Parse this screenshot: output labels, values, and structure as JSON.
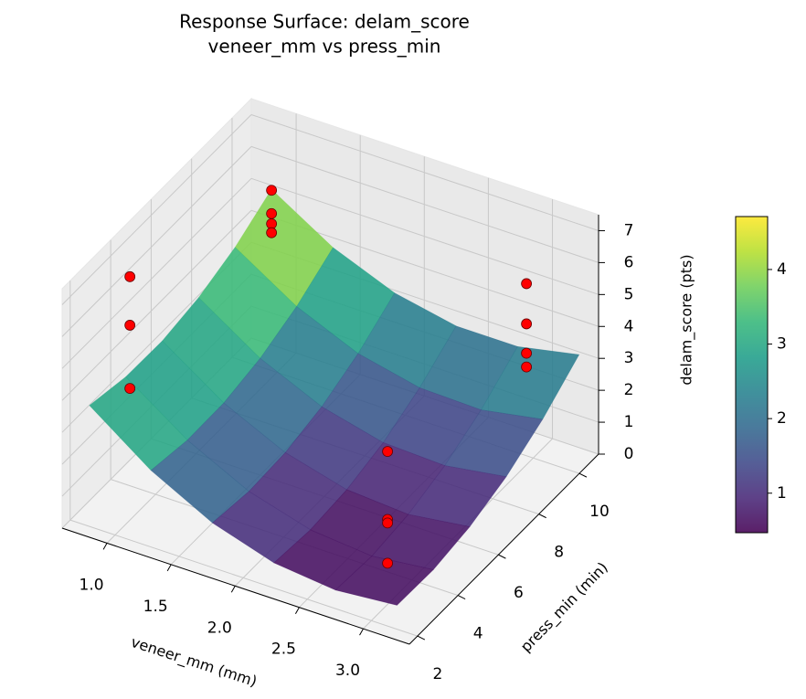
{
  "chart_data": {
    "type": "surface3d",
    "title": "Response Surface: delam_score",
    "subtitle": "veneer_mm vs press_min",
    "x_label": "veneer_mm (mm)",
    "y_label": "press_min (min)",
    "z_label": "delam_score (pts)",
    "xlim": [
      0.65,
      3.36
    ],
    "xticks": [
      {
        "value": 1,
        "label": "1.0"
      },
      1.5,
      {
        "value": 2,
        "label": "2.0"
      },
      2.5,
      {
        "value": 3,
        "label": "3.0"
      }
    ],
    "ylim": [
      1.6,
      10.95
    ],
    "yticks": [
      2,
      4,
      6,
      8,
      10
    ],
    "zlim": [
      0,
      7.5
    ],
    "zticks": [
      0,
      1,
      2,
      3,
      4,
      5,
      6,
      7
    ],
    "surface": {
      "x": [
        0.8,
        1.28,
        1.76,
        2.24,
        2.72,
        3.2
      ],
      "y": [
        2,
        3.8,
        5.6,
        7.4,
        9.2,
        11
      ],
      "z": [
        [
          3.79,
          3.54,
          3.52,
          3.73,
          4.16,
          4.83
        ],
        [
          2.4,
          2.2,
          2.22,
          2.47,
          2.95,
          3.65
        ],
        [
          1.4,
          1.24,
          1.31,
          1.6,
          2.12,
          2.87
        ],
        [
          0.79,
          0.68,
          0.79,
          1.12,
          1.69,
          2.48
        ],
        [
          0.58,
          0.5,
          0.66,
          1.04,
          1.64,
          2.48
        ],
        [
          0.75,
          0.72,
          0.92,
          1.34,
          1.99,
          2.87
        ]
      ]
    },
    "points": {
      "color": "#ff0000",
      "x": [
        0.8,
        0.8,
        0.8,
        0.8,
        0.8,
        0.8,
        0.8,
        3.2,
        3.2,
        3.2,
        3.2,
        3.0,
        3.0,
        3.0,
        3.0
      ],
      "y": [
        11,
        11,
        11,
        11,
        4.0,
        4.0,
        4.0,
        8.4,
        8.4,
        8.4,
        8.4,
        2.8,
        2.8,
        2.8,
        2.8
      ],
      "z": [
        4.8,
        4.07,
        3.75,
        3.47,
        6.55,
        5.03,
        3.05,
        6.75,
        5.49,
        4.57,
        4.14,
        4.79,
        2.66,
        2.55,
        1.29
      ]
    },
    "clim": [
      0.47,
      4.71
    ],
    "cticks": [
      1,
      2,
      3,
      4
    ]
  }
}
